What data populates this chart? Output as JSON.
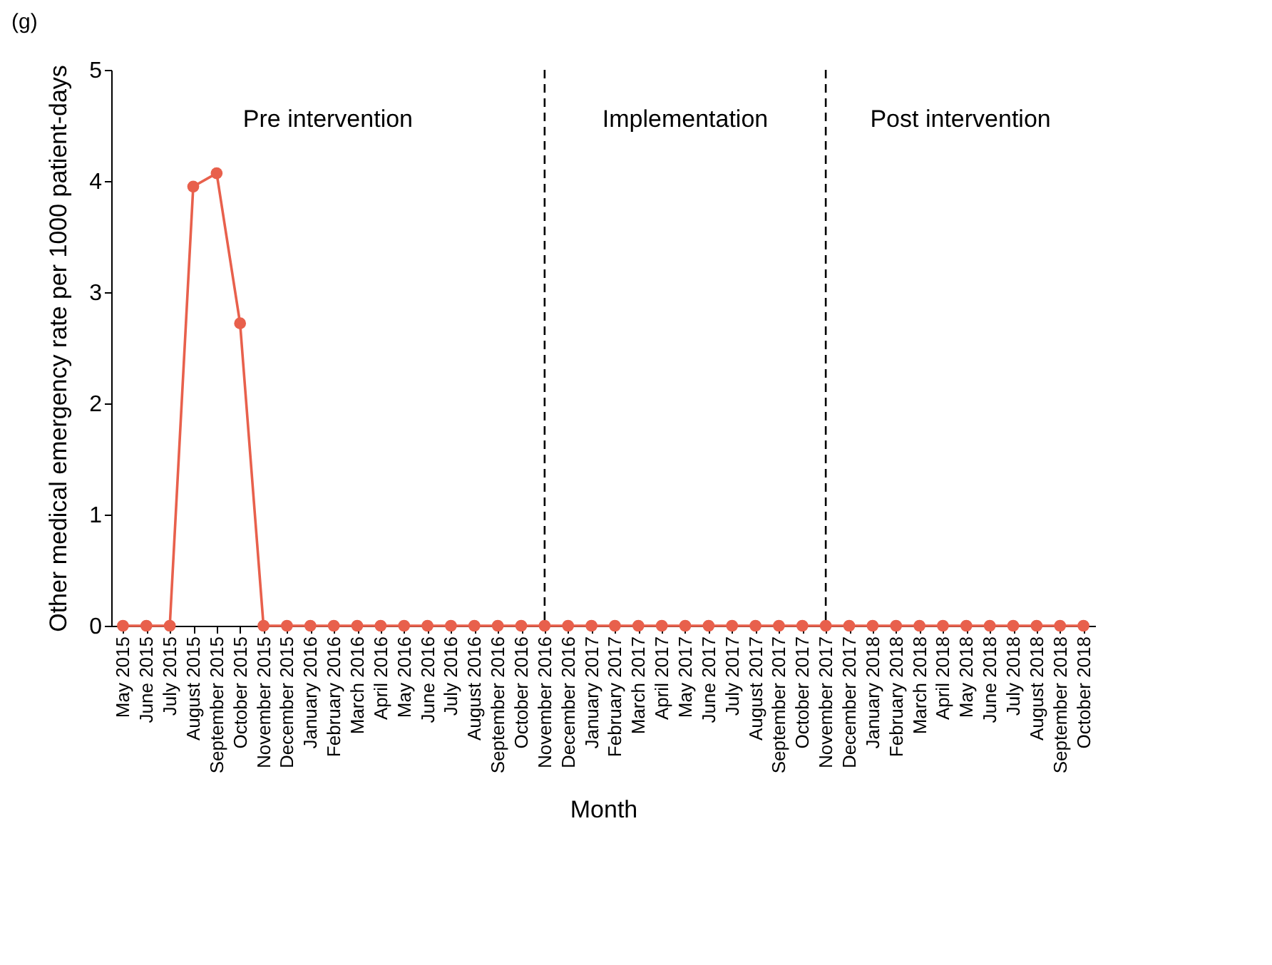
{
  "chart_data": {
    "type": "line",
    "title": "(g)",
    "xlabel": "Month",
    "ylabel": "Other medical emergency rate per 1000 patient-days",
    "categories": [
      "May 2015",
      "June 2015",
      "July 2015",
      "August 2015",
      "September 2015",
      "October 2015",
      "November 2015",
      "December 2015",
      "January 2016",
      "February 2016",
      "March 2016",
      "April 2016",
      "May 2016",
      "June 2016",
      "July 2016",
      "August 2016",
      "September 2016",
      "October 2016",
      "November 2016",
      "December 2016",
      "January 2017",
      "February 2017",
      "March 2017",
      "April 2017",
      "May 2017",
      "June 2017",
      "July 2017",
      "August 2017",
      "September 2017",
      "October 2017",
      "November 2017",
      "December 2017",
      "January 2018",
      "February 2018",
      "March 2018",
      "April 2018",
      "May 2018",
      "June 2018",
      "July 2018",
      "August 2018",
      "September 2018",
      "October 2018"
    ],
    "series": [
      {
        "color": "#e8604c",
        "values": [
          0,
          0,
          0,
          3.95,
          4.07,
          2.72,
          0,
          0,
          0,
          0,
          0,
          0,
          0,
          0,
          0,
          0,
          0,
          0,
          0,
          0,
          0,
          0,
          0,
          0,
          0,
          0,
          0,
          0,
          0,
          0,
          0,
          0,
          0,
          0,
          0,
          0,
          0,
          0,
          0,
          0,
          0,
          0
        ]
      }
    ],
    "ylim": [
      0,
      5
    ],
    "yticks": [
      0,
      1,
      2,
      3,
      4,
      5
    ],
    "grid": false,
    "marker": "circle",
    "line_style": "solid",
    "ref_lines": [
      {
        "axis": "x",
        "value": "November 2016",
        "line_style": "dashed",
        "color": "#000000"
      },
      {
        "axis": "x",
        "value": "November 2017",
        "line_style": "dashed",
        "color": "#000000"
      }
    ],
    "annotations": [
      "Pre intervention",
      "Implementation",
      "Post intervention"
    ]
  }
}
